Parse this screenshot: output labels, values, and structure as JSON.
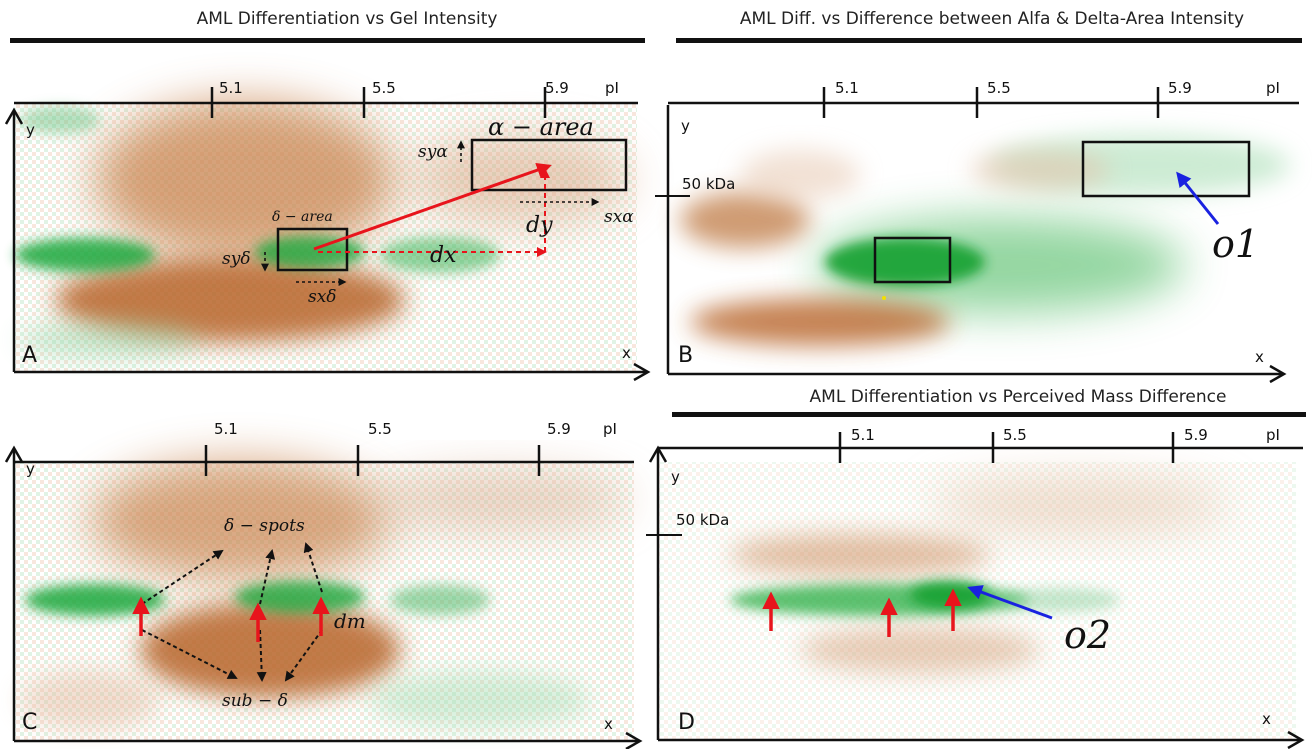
{
  "panels": {
    "a": {
      "title": "AML Differentiation vs Gel Intensity",
      "letter": "A",
      "ticks": [
        "5.1",
        "5.5",
        "5.9"
      ],
      "pi_label": "pI",
      "y_label": "y",
      "x_label": "x",
      "alpha_area": "α − area",
      "delta_area": "δ − area",
      "sy_alpha": "syα",
      "sx_alpha": "sxα",
      "sy_delta": "syδ",
      "sx_delta": "sxδ",
      "dx": "dx",
      "dy": "dy"
    },
    "b": {
      "title": "AML Diff. vs Difference between Alfa & Delta-Area Intensity",
      "letter": "B",
      "ticks": [
        "5.1",
        "5.5",
        "5.9"
      ],
      "pi_label": "pI",
      "y_label": "y",
      "x_label": "x",
      "mass": "50 kDa",
      "outlier": "o1"
    },
    "c": {
      "letter": "C",
      "ticks": [
        "5.1",
        "5.5",
        "5.9"
      ],
      "pi_label": "pI",
      "y_label": "y",
      "x_label": "x",
      "delta_spots": "δ − spots",
      "sub_delta": "sub − δ",
      "dm": "dm"
    },
    "d": {
      "title": "AML Differentiation vs Perceived Mass Difference",
      "letter": "D",
      "ticks": [
        "5.1",
        "5.5",
        "5.9"
      ],
      "pi_label": "pI",
      "y_label": "y",
      "x_label": "x",
      "mass": "50 kDa",
      "outlier": "o2"
    }
  },
  "colors": {
    "upregulated": "#b8652a",
    "downregulated": "#1fa83c",
    "arrow_red": "#e8141c",
    "arrow_blue": "#1a22e0",
    "ink": "#111111"
  }
}
